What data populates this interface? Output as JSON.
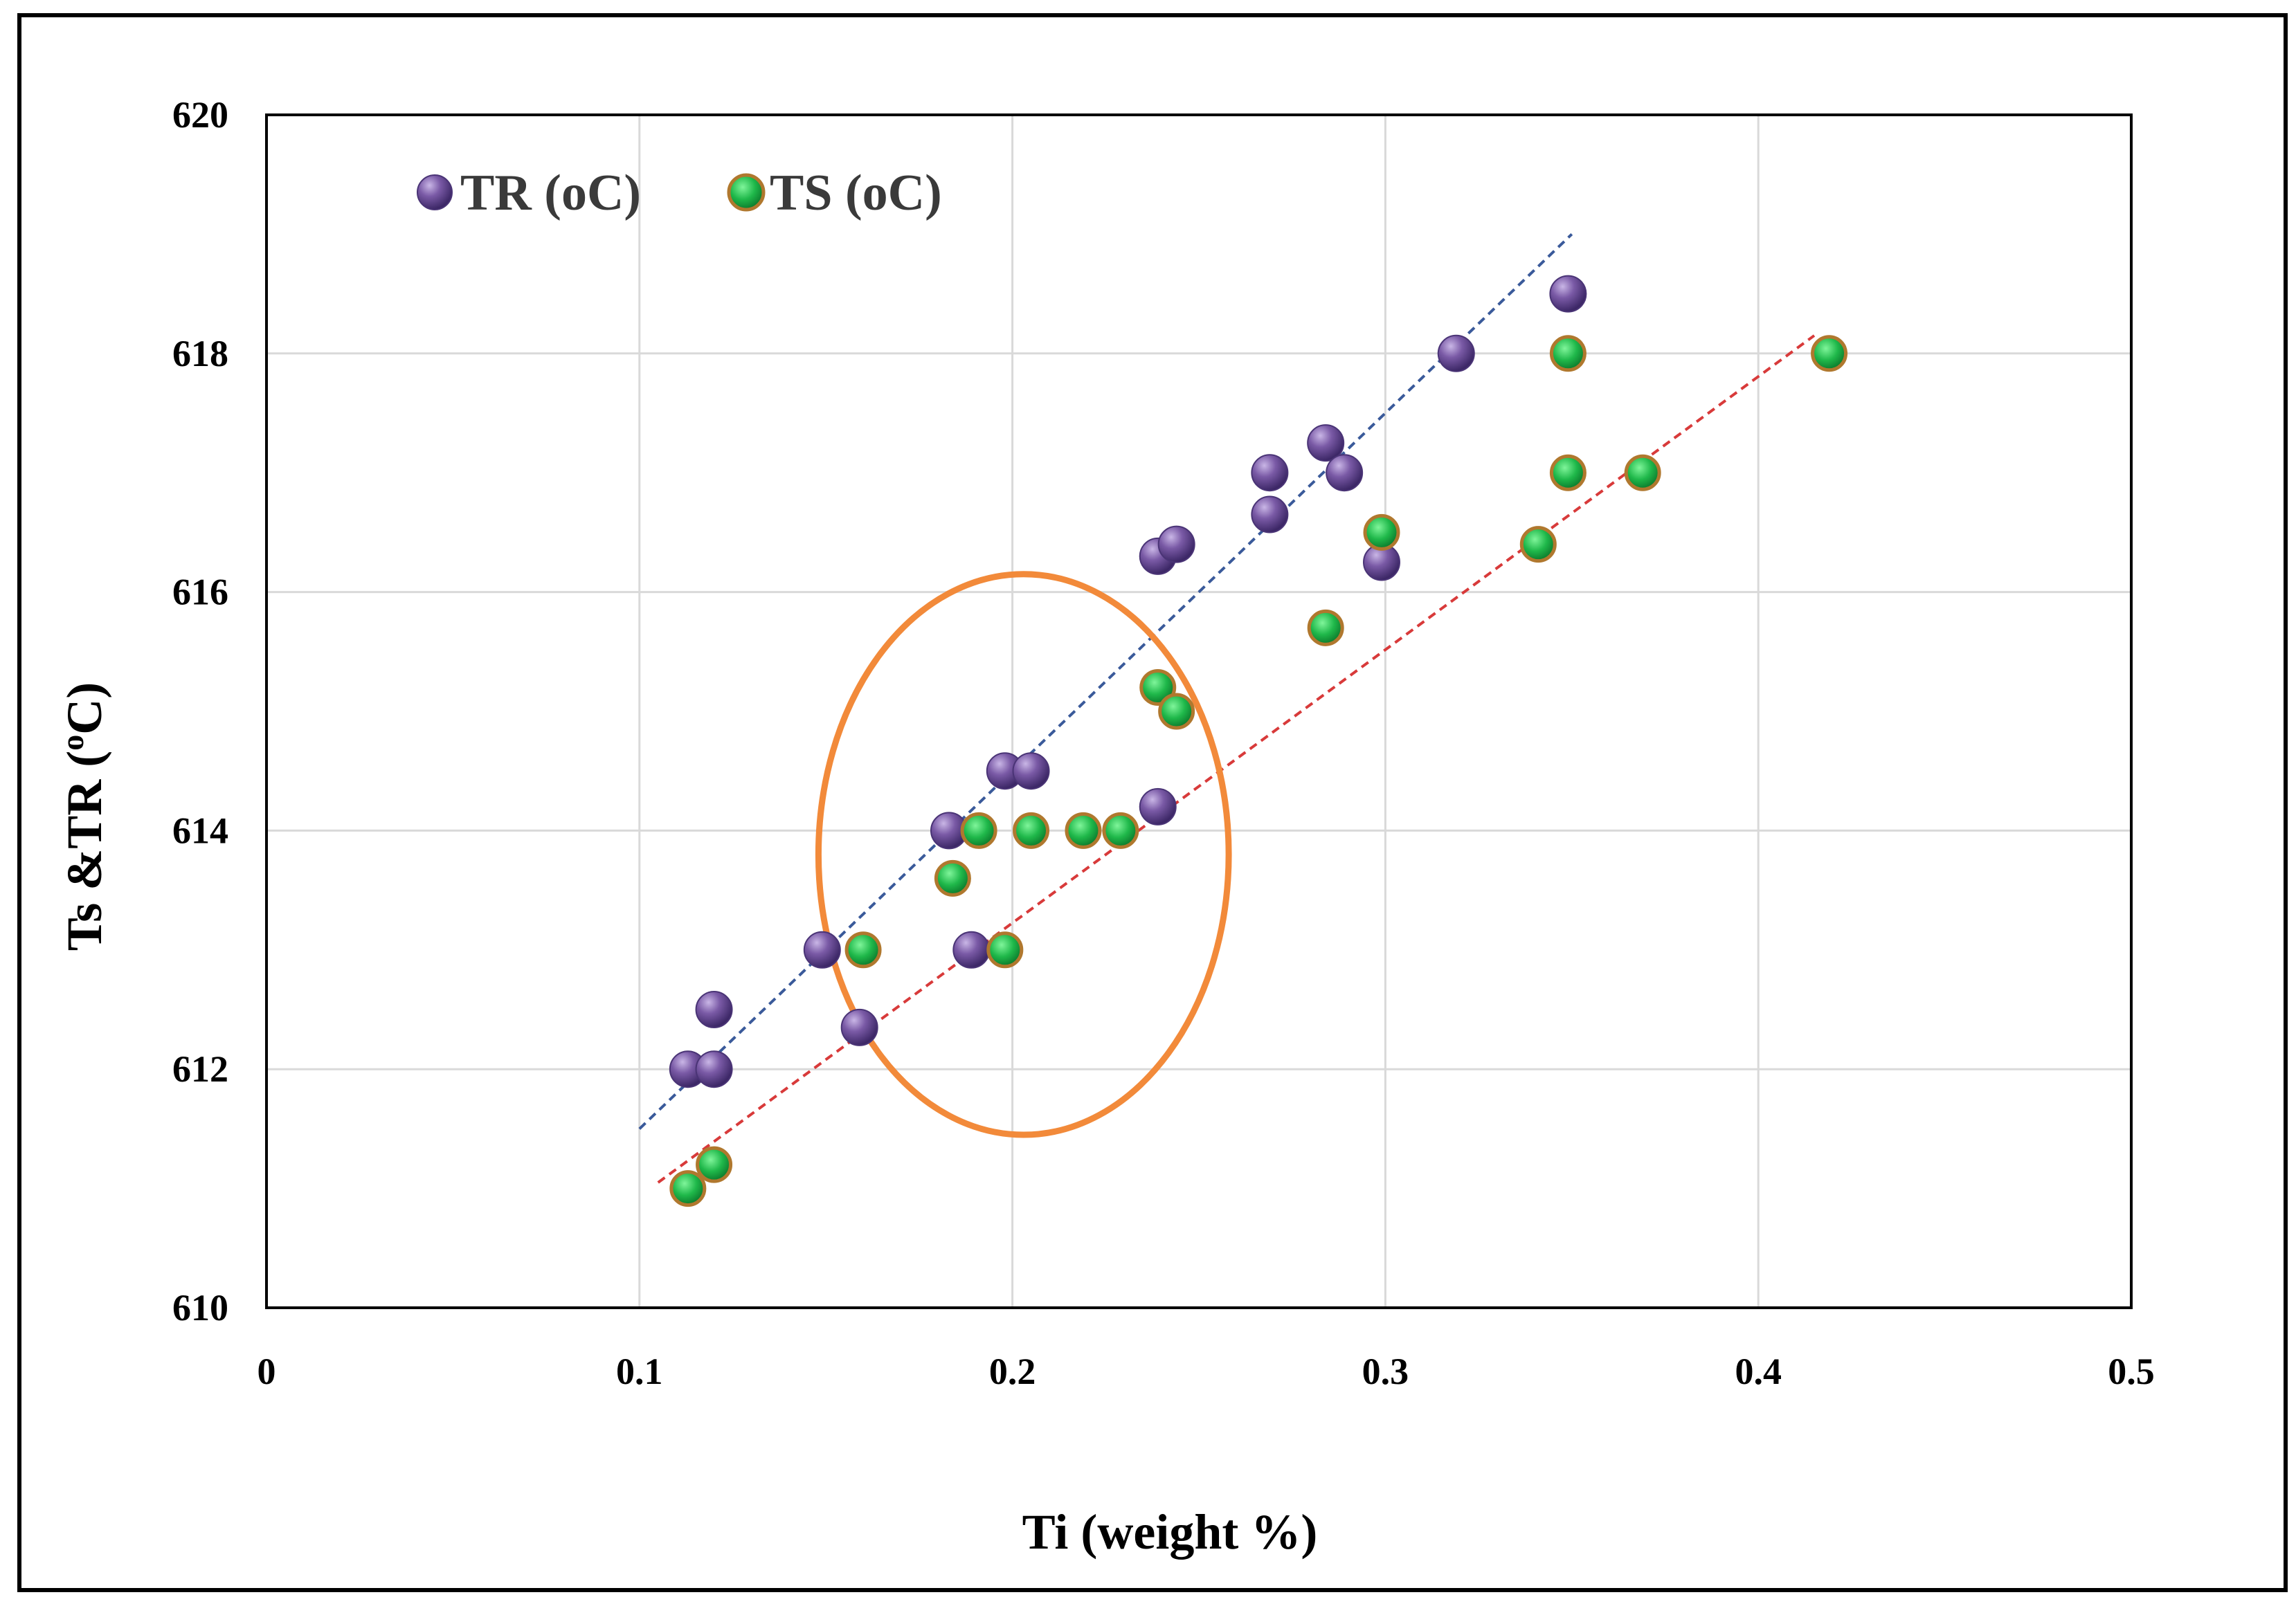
{
  "chart_data": {
    "type": "scatter",
    "title": "",
    "xlabel": "Ti (weight %)",
    "ylabel_main": "Ts &TR (",
    "ylabel_sup": "o",
    "ylabel_tail": "C)",
    "xlim": [
      0,
      0.5
    ],
    "ylim": [
      610,
      620
    ],
    "xticks": [
      0,
      0.1,
      0.2,
      0.3,
      0.4,
      0.5
    ],
    "xtick_labels": [
      "0",
      "0.1",
      "0.2",
      "0.3",
      "0.4",
      "0.5"
    ],
    "yticks": [
      610,
      612,
      614,
      616,
      618,
      620
    ],
    "ytick_labels": [
      "610",
      "612",
      "614",
      "616",
      "618",
      "620"
    ],
    "grid": true,
    "legend_position": "top-left",
    "series": [
      {
        "name": "TR (oC)",
        "color": "#7a5aa6",
        "points": [
          [
            0.113,
            612.0
          ],
          [
            0.12,
            612.0
          ],
          [
            0.12,
            612.5
          ],
          [
            0.149,
            613.0
          ],
          [
            0.159,
            612.35
          ],
          [
            0.183,
            614.0
          ],
          [
            0.189,
            613.0
          ],
          [
            0.198,
            614.5
          ],
          [
            0.205,
            614.5
          ],
          [
            0.239,
            614.2
          ],
          [
            0.239,
            616.3
          ],
          [
            0.244,
            616.4
          ],
          [
            0.269,
            617.0
          ],
          [
            0.269,
            616.65
          ],
          [
            0.284,
            617.25
          ],
          [
            0.289,
            617.0
          ],
          [
            0.299,
            616.25
          ],
          [
            0.319,
            618.0
          ],
          [
            0.349,
            618.5
          ]
        ],
        "trendline": {
          "x": [
            0.1,
            0.35
          ],
          "y": [
            611.5,
            619.0
          ],
          "color": "#3a5a9a"
        }
      },
      {
        "name": "TS (oC)",
        "color": "#1fb84a",
        "edge_color": "#b0782e",
        "points": [
          [
            0.113,
            611.0
          ],
          [
            0.12,
            611.2
          ],
          [
            0.16,
            613.0
          ],
          [
            0.184,
            613.6
          ],
          [
            0.191,
            614.0
          ],
          [
            0.198,
            613.0
          ],
          [
            0.205,
            614.0
          ],
          [
            0.219,
            614.0
          ],
          [
            0.229,
            614.0
          ],
          [
            0.239,
            615.2
          ],
          [
            0.244,
            615.0
          ],
          [
            0.284,
            615.7
          ],
          [
            0.299,
            616.5
          ],
          [
            0.341,
            616.4
          ],
          [
            0.349,
            617.0
          ],
          [
            0.349,
            618.0
          ],
          [
            0.369,
            617.0
          ],
          [
            0.419,
            618.0
          ]
        ],
        "trendline": {
          "x": [
            0.105,
            0.415
          ],
          "y": [
            611.05,
            618.15
          ],
          "color": "#d83a3a"
        }
      }
    ],
    "annotations": [
      {
        "type": "ellipse",
        "center_x": 0.203,
        "center_y": 613.8,
        "radius_x": 0.055,
        "radius_y": 2.35,
        "color": "#f28a3a"
      }
    ]
  }
}
